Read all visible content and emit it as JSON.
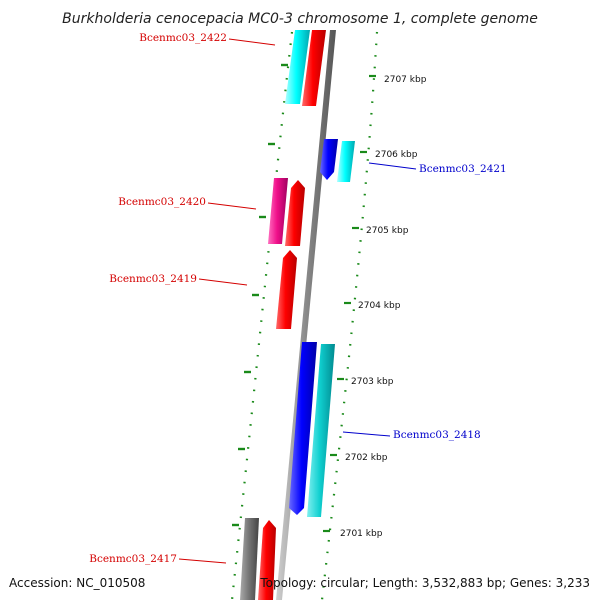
{
  "title": "Burkholderia cenocepacia MC0-3 chromosome 1, complete genome",
  "footer": {
    "accession": "Accession: NC_010508",
    "topology": "Topology: circular; Length: 3,532,883 bp; Genes: 3,233"
  },
  "ticks": [
    {
      "label": "2707 kbp"
    },
    {
      "label": "2706 kbp"
    },
    {
      "label": "2705 kbp"
    },
    {
      "label": "2704 kbp"
    },
    {
      "label": "2703 kbp"
    },
    {
      "label": "2702 kbp"
    },
    {
      "label": "2701 kbp"
    }
  ],
  "genes": [
    {
      "name": "Bcenmc03_2422",
      "color": "#d40000"
    },
    {
      "name": "Bcenmc03_2421",
      "color": "#0000cc"
    },
    {
      "name": "Bcenmc03_2420",
      "color": "#d40000"
    },
    {
      "name": "Bcenmc03_2419",
      "color": "#d40000"
    },
    {
      "name": "Bcenmc03_2418",
      "color": "#0000cc"
    },
    {
      "name": "Bcenmc03_2417",
      "color": "#d40000"
    }
  ],
  "colors": {
    "backbone": "#8a8a8a",
    "cds_forward": "#ee0000",
    "cds_reverse": "#1010ee",
    "rna": "#00e5e5",
    "pseudo": "#e0178a",
    "other": "#777777",
    "dotted_ring": "#1a8a1a"
  }
}
